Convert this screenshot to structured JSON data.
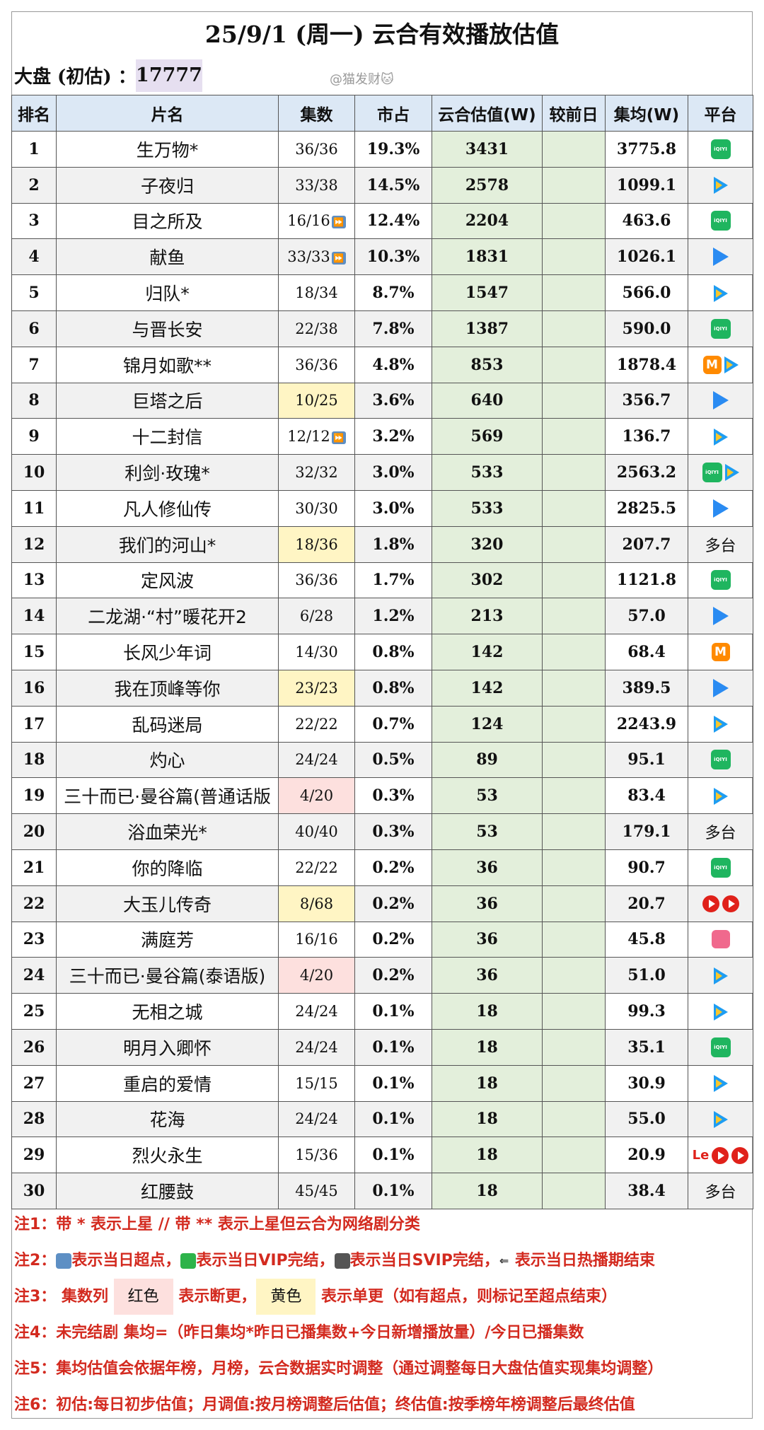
{
  "title": "25/9/1 (周一) 云合有效播放估值",
  "dapan": {
    "label": "大盘 (初估) ：",
    "value": "17777"
  },
  "watermark": "@猫发财🐱",
  "headers": [
    "排名",
    "片名",
    "集数",
    "市占",
    "云合估值(W)",
    "较前日",
    "集均(W)",
    "平台"
  ],
  "rows": [
    {
      "rank": "1",
      "name": "生万物*",
      "eps": "36/36",
      "share": "19.3%",
      "value": "3431",
      "delta": "",
      "avg": "3775.8",
      "platform": [
        "iqiyi"
      ],
      "eps_hl": ""
    },
    {
      "rank": "2",
      "name": "子夜归",
      "eps": "33/38",
      "share": "14.5%",
      "value": "2578",
      "delta": "",
      "avg": "1099.1",
      "platform": [
        "tencent"
      ],
      "eps_hl": ""
    },
    {
      "rank": "3",
      "name": "目之所及",
      "eps": "16/16",
      "eps_ff": true,
      "share": "12.4%",
      "value": "2204",
      "delta": "",
      "avg": "463.6",
      "platform": [
        "iqiyi"
      ],
      "eps_hl": ""
    },
    {
      "rank": "4",
      "name": "献鱼",
      "eps": "33/33",
      "eps_ff": true,
      "share": "10.3%",
      "value": "1831",
      "delta": "",
      "avg": "1026.1",
      "platform": [
        "youku"
      ],
      "eps_hl": ""
    },
    {
      "rank": "5",
      "name": "归队*",
      "eps": "18/34",
      "share": "8.7%",
      "value": "1547",
      "delta": "",
      "avg": "566.0",
      "platform": [
        "tencent"
      ],
      "eps_hl": ""
    },
    {
      "rank": "6",
      "name": "与晋长安",
      "eps": "22/38",
      "share": "7.8%",
      "value": "1387",
      "delta": "",
      "avg": "590.0",
      "platform": [
        "iqiyi"
      ],
      "eps_hl": ""
    },
    {
      "rank": "7",
      "name": "锦月如歌**",
      "eps": "36/36",
      "share": "4.8%",
      "value": "853",
      "delta": "",
      "avg": "1878.4",
      "platform": [
        "mgtv",
        "tencent"
      ],
      "eps_hl": ""
    },
    {
      "rank": "8",
      "name": "巨塔之后",
      "eps": "10/25",
      "share": "3.6%",
      "value": "640",
      "delta": "",
      "avg": "356.7",
      "platform": [
        "youku"
      ],
      "eps_hl": "yellow"
    },
    {
      "rank": "9",
      "name": "十二封信",
      "eps": "12/12",
      "eps_ff": true,
      "share": "3.2%",
      "value": "569",
      "delta": "",
      "avg": "136.7",
      "platform": [
        "tencent"
      ],
      "eps_hl": ""
    },
    {
      "rank": "10",
      "name": "利剑·玫瑰*",
      "eps": "32/32",
      "share": "3.0%",
      "value": "533",
      "delta": "",
      "avg": "2563.2",
      "platform": [
        "iqiyi",
        "tencent"
      ],
      "eps_hl": ""
    },
    {
      "rank": "11",
      "name": "凡人修仙传",
      "eps": "30/30",
      "share": "3.0%",
      "value": "533",
      "delta": "",
      "avg": "2825.5",
      "platform": [
        "youku"
      ],
      "eps_hl": ""
    },
    {
      "rank": "12",
      "name": "我们的河山*",
      "eps": "18/36",
      "share": "1.8%",
      "value": "320",
      "delta": "",
      "avg": "207.7",
      "platform_text": "多台",
      "platform": [],
      "eps_hl": "yellow"
    },
    {
      "rank": "13",
      "name": "定风波",
      "eps": "36/36",
      "share": "1.7%",
      "value": "302",
      "delta": "",
      "avg": "1121.8",
      "platform": [
        "iqiyi"
      ],
      "eps_hl": ""
    },
    {
      "rank": "14",
      "name": "二龙湖·“村”暖花开2",
      "eps": "6/28",
      "share": "1.2%",
      "value": "213",
      "delta": "",
      "avg": "57.0",
      "platform": [
        "youku"
      ],
      "eps_hl": ""
    },
    {
      "rank": "15",
      "name": "长风少年词",
      "eps": "14/30",
      "share": "0.8%",
      "value": "142",
      "delta": "",
      "avg": "68.4",
      "platform": [
        "mgtv"
      ],
      "eps_hl": ""
    },
    {
      "rank": "16",
      "name": "我在顶峰等你",
      "eps": "23/23",
      "share": "0.8%",
      "value": "142",
      "delta": "",
      "avg": "389.5",
      "platform": [
        "youku"
      ],
      "eps_hl": "yellow"
    },
    {
      "rank": "17",
      "name": "乱码迷局",
      "eps": "22/22",
      "share": "0.7%",
      "value": "124",
      "delta": "",
      "avg": "2243.9",
      "platform": [
        "tencent"
      ],
      "eps_hl": ""
    },
    {
      "rank": "18",
      "name": "灼心",
      "eps": "24/24",
      "share": "0.5%",
      "value": "89",
      "delta": "",
      "avg": "95.1",
      "platform": [
        "iqiyi"
      ],
      "eps_hl": ""
    },
    {
      "rank": "19",
      "name": "三十而已·曼谷篇(普通话版",
      "eps": "4/20",
      "share": "0.3%",
      "value": "53",
      "delta": "",
      "avg": "83.4",
      "platform": [
        "tencent"
      ],
      "eps_hl": "red"
    },
    {
      "rank": "20",
      "name": "浴血荣光*",
      "eps": "40/40",
      "share": "0.3%",
      "value": "53",
      "delta": "",
      "avg": "179.1",
      "platform_text": "多台",
      "platform": [],
      "eps_hl": ""
    },
    {
      "rank": "21",
      "name": "你的降临",
      "eps": "22/22",
      "share": "0.2%",
      "value": "36",
      "delta": "",
      "avg": "90.7",
      "platform": [
        "iqiyi"
      ],
      "eps_hl": ""
    },
    {
      "rank": "22",
      "name": "大玉儿传奇",
      "eps": "8/68",
      "share": "0.2%",
      "value": "36",
      "delta": "",
      "avg": "20.7",
      "platform": [
        "cctv",
        "cctv"
      ],
      "eps_hl": "yellow"
    },
    {
      "rank": "23",
      "name": "满庭芳",
      "eps": "16/16",
      "share": "0.2%",
      "value": "36",
      "delta": "",
      "avg": "45.8",
      "platform": [
        "bili"
      ],
      "eps_hl": ""
    },
    {
      "rank": "24",
      "name": "三十而已·曼谷篇(泰语版)",
      "eps": "4/20",
      "share": "0.2%",
      "value": "36",
      "delta": "",
      "avg": "51.0",
      "platform": [
        "tencent"
      ],
      "eps_hl": "red"
    },
    {
      "rank": "25",
      "name": "无相之城",
      "eps": "24/24",
      "share": "0.1%",
      "value": "18",
      "delta": "",
      "avg": "99.3",
      "platform": [
        "tencent"
      ],
      "eps_hl": ""
    },
    {
      "rank": "26",
      "name": "明月入卿怀",
      "eps": "24/24",
      "share": "0.1%",
      "value": "18",
      "delta": "",
      "avg": "35.1",
      "platform": [
        "iqiyi"
      ],
      "eps_hl": ""
    },
    {
      "rank": "27",
      "name": "重启的爱情",
      "eps": "15/15",
      "share": "0.1%",
      "value": "18",
      "delta": "",
      "avg": "30.9",
      "platform": [
        "tencent"
      ],
      "eps_hl": ""
    },
    {
      "rank": "28",
      "name": "花海",
      "eps": "24/24",
      "share": "0.1%",
      "value": "18",
      "delta": "",
      "avg": "55.0",
      "platform": [
        "tencent"
      ],
      "eps_hl": ""
    },
    {
      "rank": "29",
      "name": "烈火永生",
      "eps": "15/36",
      "share": "0.1%",
      "value": "18",
      "delta": "",
      "avg": "20.9",
      "platform": [
        "le",
        "cctv",
        "cctv"
      ],
      "eps_hl": ""
    },
    {
      "rank": "30",
      "name": "红腰鼓",
      "eps": "45/45",
      "share": "0.1%",
      "value": "18",
      "delta": "",
      "avg": "38.4",
      "platform_text": "多台",
      "platform": [],
      "eps_hl": ""
    }
  ],
  "platform_labels": {
    "iqiyi": "iQIYI",
    "mgtv": "M",
    "le": "Le"
  },
  "notes": {
    "n1": "注1：带 * 表示上星 // 带 ** 表示上星但云合为网络剧分类",
    "n2_prefix": "注2：",
    "n2_a": "表示当日超点，",
    "n2_b": "表示当日VIP完结，",
    "n2_c": "表示当日SVIP完结，",
    "n2_d": "表示当日热播期结束",
    "n2_end_icon": "⇐",
    "n3_prefix": "注3：  集数列 ",
    "n3_red": "红色",
    "n3_mid": " 表示断更，",
    "n3_yellow": "黄色",
    "n3_end": " 表示单更（如有超点，则标记至超点结束）",
    "n4": "注4：未完结剧 集均=（昨日集均*昨日已播集数+今日新增播放量）/今日已播集数",
    "n5": "注5：集均估值会依据年榜，月榜，云合数据实时调整（通过调整每日大盘估值实现集均调整）",
    "n6": "注6：初估:每日初步估值；月调值:按月榜调整后估值；终估值:按季榜年榜调整后最终估值"
  }
}
